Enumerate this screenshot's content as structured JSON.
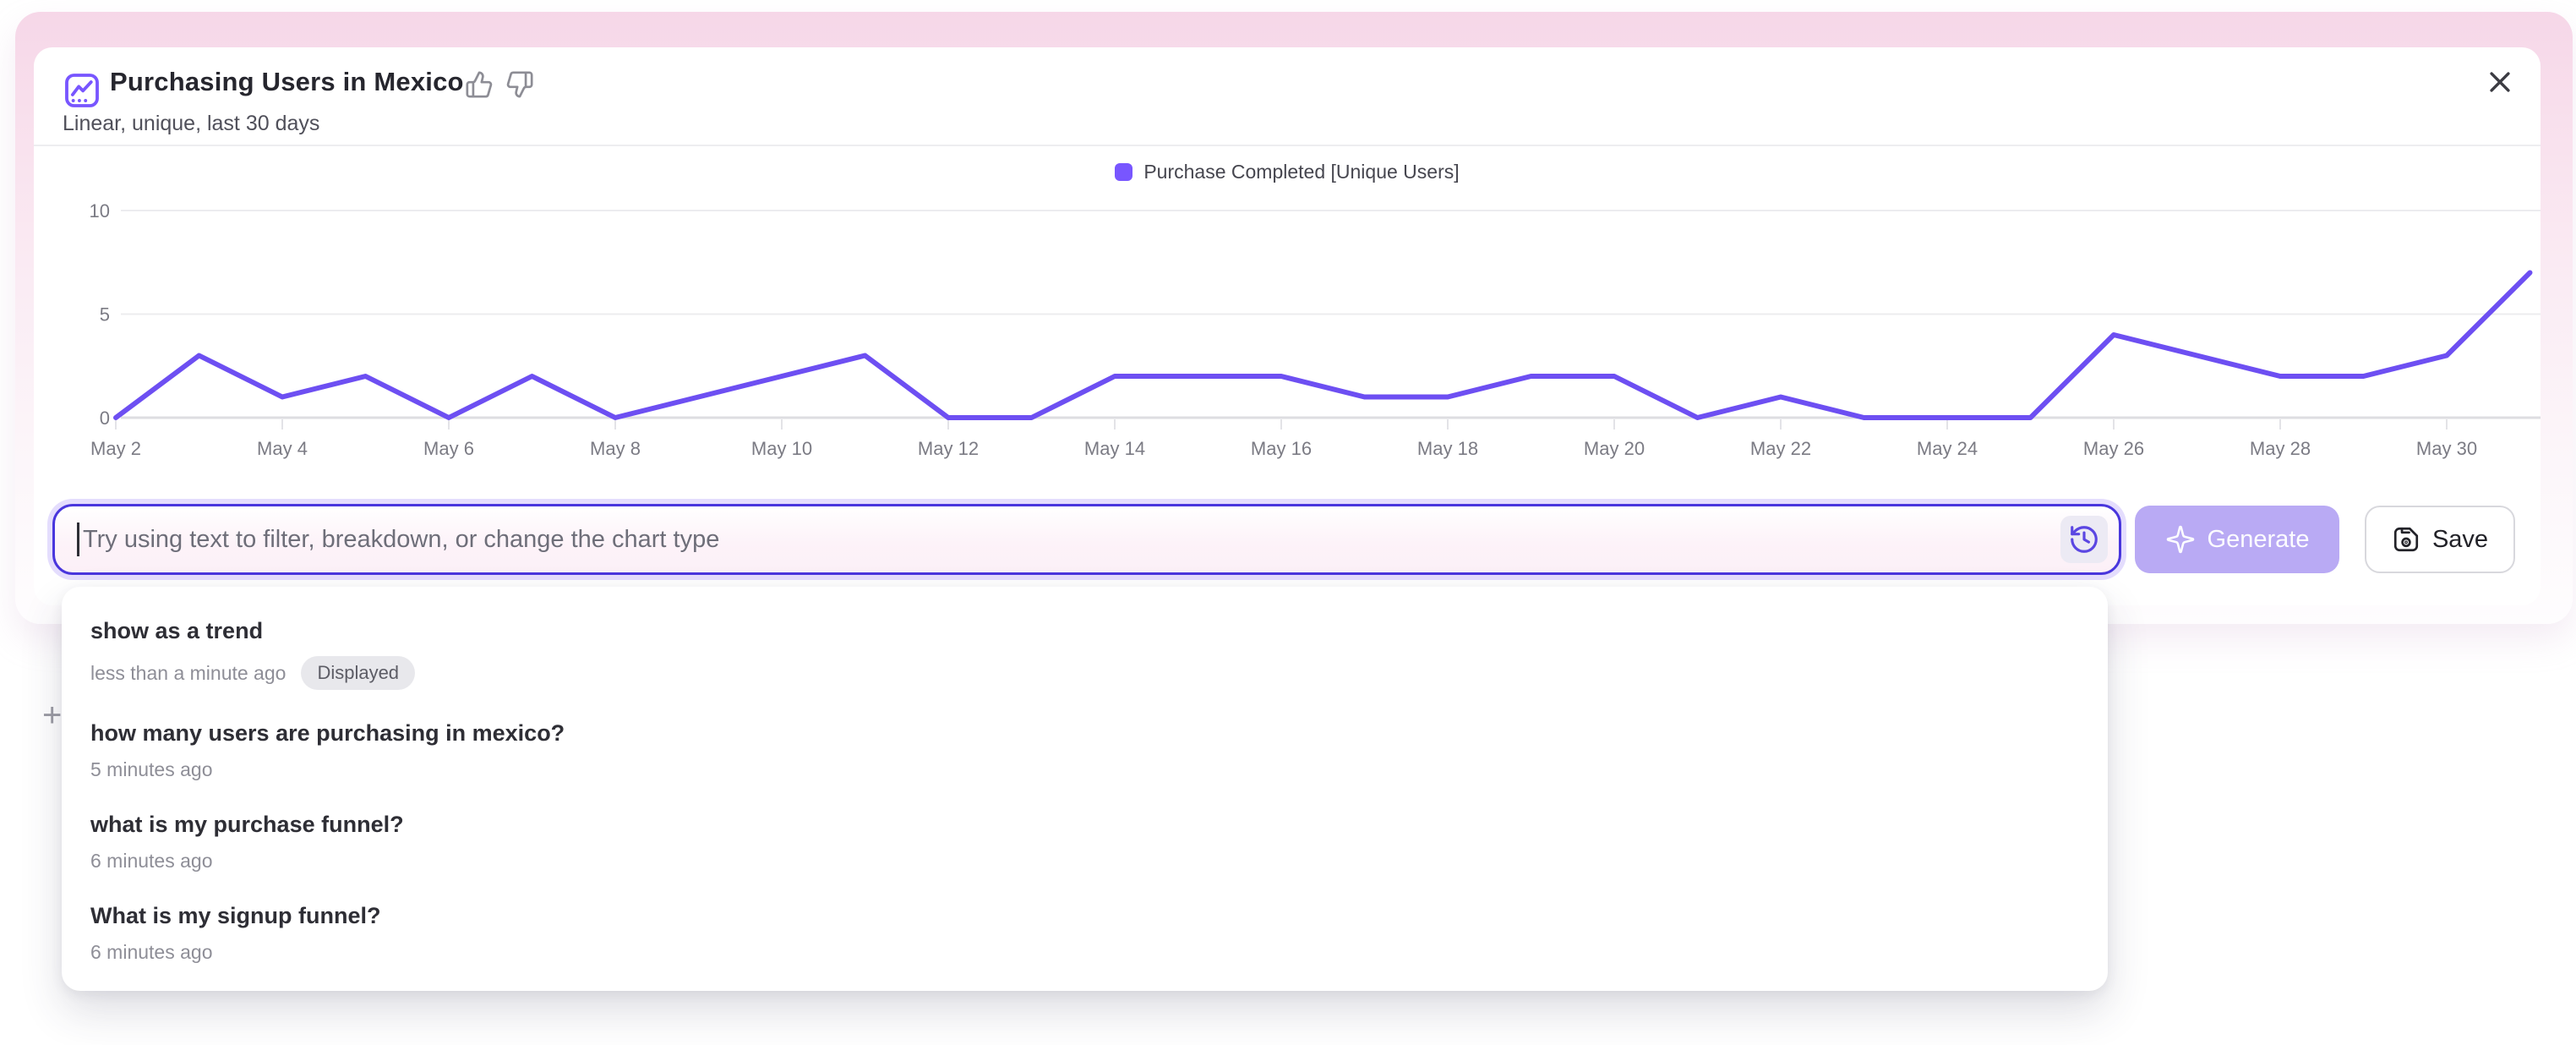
{
  "header": {
    "title": "Purchasing Users in Mexico",
    "subtitle": "Linear, unique, last 30 days"
  },
  "chart_data": {
    "type": "line",
    "title": "Purchasing Users in Mexico",
    "x": [
      "May 2",
      "May 3",
      "May 4",
      "May 5",
      "May 6",
      "May 7",
      "May 8",
      "May 9",
      "May 10",
      "May 11",
      "May 12",
      "May 13",
      "May 14",
      "May 15",
      "May 16",
      "May 17",
      "May 18",
      "May 19",
      "May 20",
      "May 21",
      "May 22",
      "May 23",
      "May 24",
      "May 25",
      "May 26",
      "May 27",
      "May 28",
      "May 29",
      "May 30",
      "May 31"
    ],
    "x_tick_step": 2,
    "series": [
      {
        "name": "Purchase Completed [Unique Users]",
        "color": "#6d4ff2",
        "values": [
          0,
          3,
          1,
          2,
          0,
          2,
          0,
          1,
          2,
          3,
          0,
          0,
          2,
          2,
          2,
          1,
          1,
          2,
          2,
          0,
          1,
          0,
          0,
          0,
          4,
          3,
          2,
          2,
          3,
          7
        ]
      }
    ],
    "ylim": [
      0,
      10
    ],
    "yticks": [
      0,
      5,
      10
    ],
    "grid": "horizontal",
    "legend_position": "top-center"
  },
  "composer": {
    "placeholder": "Try using text to filter, breakdown, or change the chart type",
    "generate_label": "Generate",
    "save_label": "Save"
  },
  "history_dropdown": {
    "items": [
      {
        "query": "show as a trend",
        "time": "less than a minute ago",
        "badge": "Displayed"
      },
      {
        "query": "how many users are purchasing in mexico?",
        "time": "5 minutes ago"
      },
      {
        "query": "what is my purchase funnel?",
        "time": "6 minutes ago"
      },
      {
        "query": "What is my signup funnel?",
        "time": "6 minutes ago"
      }
    ]
  },
  "page": {
    "plus_label": "+"
  },
  "colors": {
    "accent": "#7856ff",
    "input-border": "#4936dd",
    "generate-bg": "#b9aaf4",
    "badge-bg": "#e8e8ec"
  }
}
